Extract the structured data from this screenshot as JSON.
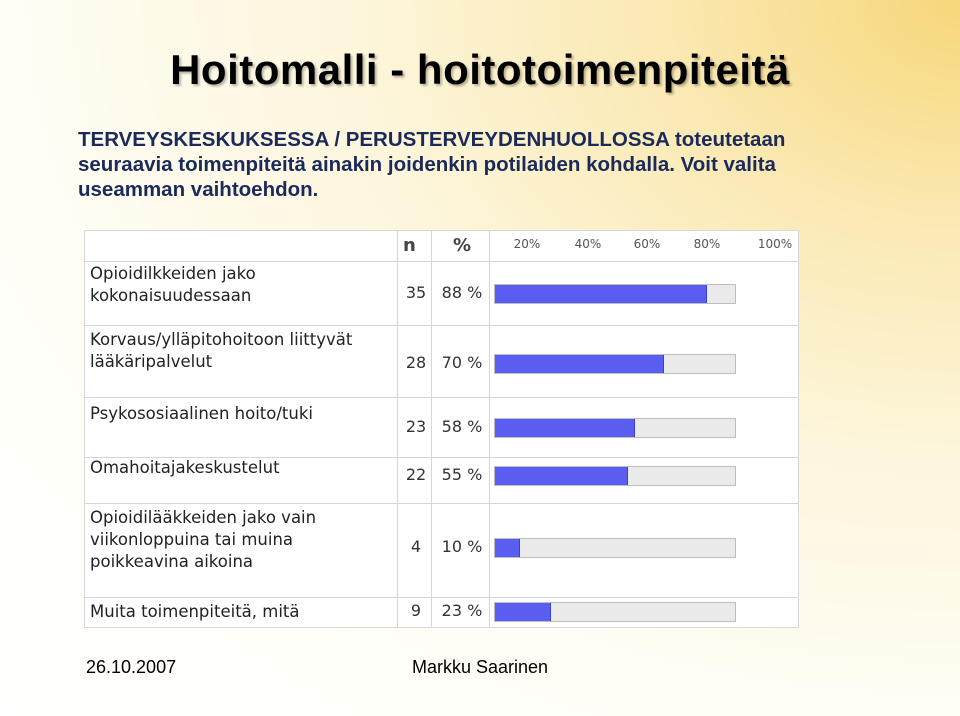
{
  "title": "Hoitomalli - hoitotoimenpiteitä",
  "subtitle": "TERVEYSKESKUKSESSA / PERUSTERVEYDENHUOLLOSSA toteutetaan seuraavia toimenpiteitä ainakin joidenkin potilaiden kohdalla. Voit valita useamman vaihtoehdon.",
  "footer": {
    "date": "26.10.2007",
    "author": "Markku Saarinen"
  },
  "chart_data": {
    "type": "bar",
    "orientation": "horizontal",
    "columns": {
      "n": "n",
      "percent": "%"
    },
    "ticks": [
      "20%",
      "40%",
      "60%",
      "80%",
      "100%"
    ],
    "xlim": [
      0,
      100
    ],
    "grid": true,
    "rows": [
      {
        "label": "Opioidilkkeiden jako\nkokonaisuudessaan",
        "n": "35",
        "pct": "88 %",
        "value": 88
      },
      {
        "label": "Korvaus/ylläpitohoitoon liittyvät\nlääkäripalvelut",
        "n": "28",
        "pct": "70 %",
        "value": 70
      },
      {
        "label": "Psykososiaalinen hoito/tuki",
        "n": "23",
        "pct": "58 %",
        "value": 58
      },
      {
        "label": "Omahoitajakeskustelut",
        "n": "22",
        "pct": "55 %",
        "value": 55
      },
      {
        "label": "Opioidilääkkeiden jako vain\nviikonloppuina tai muina\npoikkeavina aikoina",
        "n": "4",
        "pct": "10 %",
        "value": 10
      },
      {
        "label": "Muita toimenpiteitä, mitä",
        "n": "9",
        "pct": "23 %",
        "value": 23
      }
    ],
    "bar_color": "#5a5ef0",
    "track_color": "#eaeaea"
  }
}
